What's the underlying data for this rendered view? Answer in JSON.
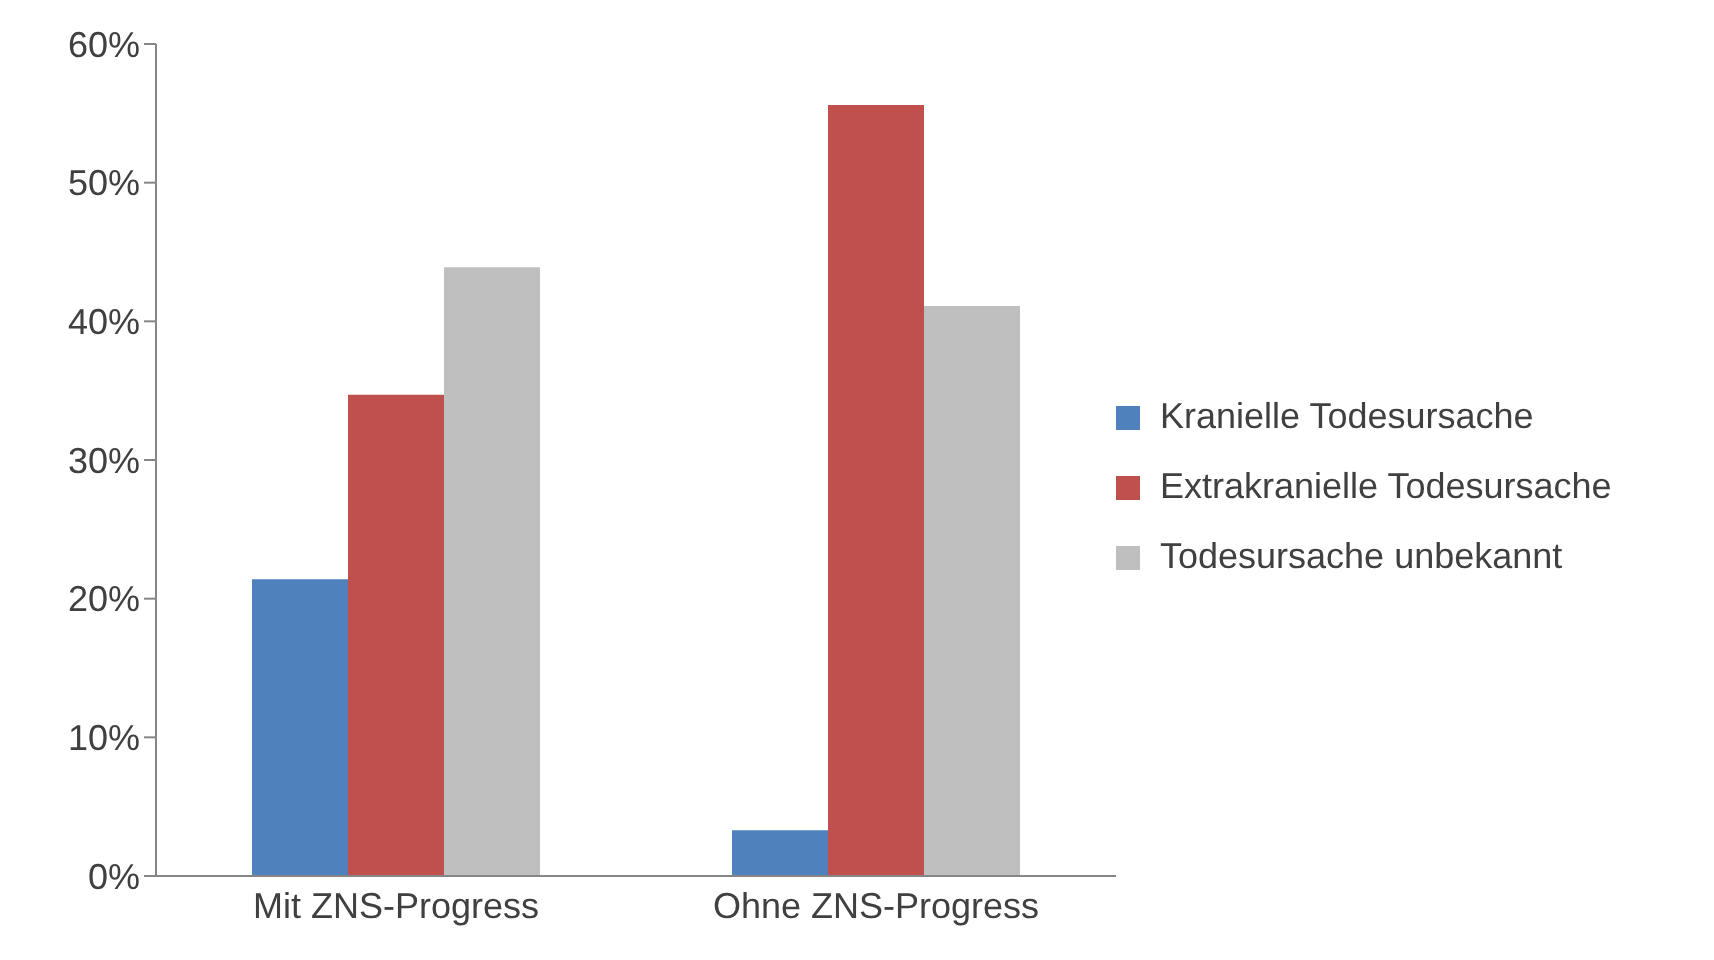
{
  "chart_data": {
    "type": "bar",
    "categories": [
      "Mit ZNS-Progress",
      "Ohne ZNS-Progress"
    ],
    "series": [
      {
        "name": "Kranielle Todesursache",
        "color": "#4f81bd",
        "values": [
          21.4,
          3.3
        ]
      },
      {
        "name": "Extrakranielle Todesursache",
        "color": "#c0504d",
        "values": [
          34.7,
          55.6
        ]
      },
      {
        "name": "Todesursache unbekannt",
        "color": "#bfbfbf",
        "values": [
          43.9,
          41.1
        ]
      }
    ],
    "ylim": [
      0,
      60
    ],
    "yticks": [
      {
        "value": 0,
        "label": "0%"
      },
      {
        "value": 10,
        "label": "10%"
      },
      {
        "value": 20,
        "label": "20%"
      },
      {
        "value": 30,
        "label": "30%"
      },
      {
        "value": 40,
        "label": "40%"
      },
      {
        "value": 50,
        "label": "50%"
      },
      {
        "value": 60,
        "label": "60%"
      }
    ],
    "grid": false,
    "legend": "right"
  }
}
